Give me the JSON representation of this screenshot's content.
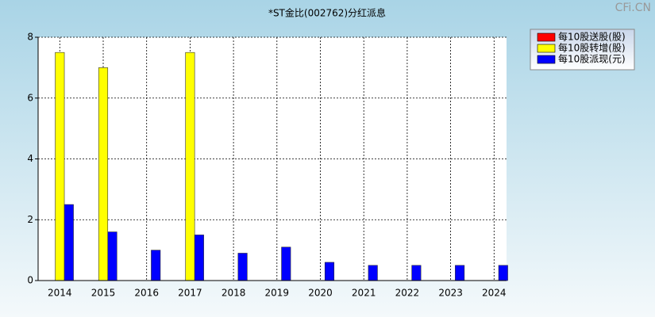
{
  "chart_data": {
    "type": "bar",
    "title": "*ST金比(002762)分红派息",
    "watermark": "CFi.CN",
    "categories": [
      "2014",
      "2015",
      "2016",
      "2017",
      "2018",
      "2019",
      "2020",
      "2021",
      "2022",
      "2023",
      "2024"
    ],
    "series": [
      {
        "name": "每10股送股(股)",
        "color": "#ff0000",
        "values": [
          null,
          null,
          null,
          null,
          null,
          null,
          null,
          null,
          null,
          null,
          null
        ]
      },
      {
        "name": "每10股转增(股)",
        "color": "#ffff00",
        "values": [
          7.5,
          7.0,
          null,
          7.5,
          null,
          null,
          null,
          null,
          null,
          null,
          null
        ]
      },
      {
        "name": "每10股派现(元)",
        "color": "#0000ff",
        "values": [
          2.5,
          1.6,
          1.0,
          1.5,
          0.9,
          1.1,
          0.6,
          0.5,
          0.5,
          0.5,
          0.5
        ]
      }
    ],
    "ylim": [
      0,
      8
    ],
    "yticks": [
      0,
      2,
      4,
      6,
      8
    ],
    "grid": true,
    "legend": "top-right"
  }
}
